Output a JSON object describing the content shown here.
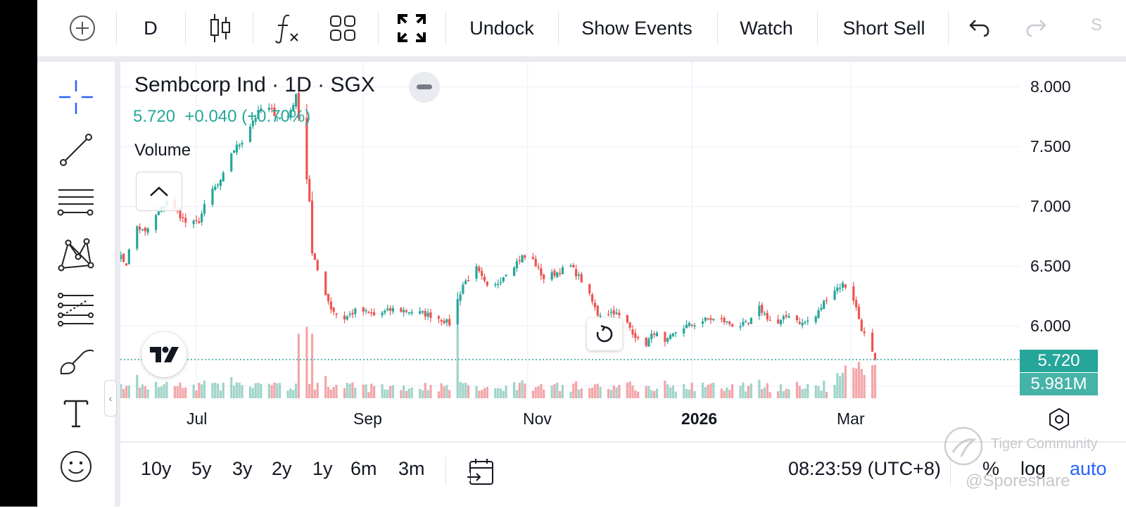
{
  "toolbar": {
    "interval": "D",
    "undock": "Undock",
    "show_events": "Show Events",
    "watch": "Watch",
    "short_sell": "Short Sell",
    "cut_text": "S"
  },
  "legend": {
    "title": "Sembcorp Ind · 1D · SGX",
    "last": "5.720",
    "change": "+0.040",
    "change_pct": "(+0.70%)",
    "volume_label": "Volume"
  },
  "badges": {
    "price": "5.720",
    "volume": "5.981M"
  },
  "bottom": {
    "ranges": [
      "10y",
      "5y",
      "3y",
      "2y",
      "1y",
      "6m",
      "3m"
    ],
    "clock": "08:23:59 (UTC+8)",
    "percent": "%",
    "log": "log",
    "auto": "auto"
  },
  "watermark": {
    "community": "Tiger Community",
    "author": "@Sporeshare"
  },
  "colors": {
    "up": "#26a69a",
    "down": "#ef5350",
    "up_volume": "#9fd4c9",
    "down_volume": "#f3a5a8",
    "accent_blue": "#2962ff"
  },
  "chart_data": {
    "type": "candlestick",
    "title": "Sembcorp Ind · 1D · SGX",
    "y_ticks": [
      "8.000",
      "7.500",
      "7.000",
      "6.500",
      "6.000"
    ],
    "ylim": [
      5.5,
      8.05
    ],
    "x_ticks": [
      {
        "label": "Jul",
        "date": "2025-07-01"
      },
      {
        "label": "Sep",
        "date": "2025-09-01"
      },
      {
        "label": "Nov",
        "date": "2025-11-01"
      },
      {
        "label": "2026",
        "date": "2026-01-01",
        "bold": true
      },
      {
        "label": "Mar",
        "date": "2026-03-01"
      }
    ],
    "last_price": 5.72,
    "last_volume": "5.981M",
    "grid": true,
    "close_path": [
      [
        "2025-06-02",
        6.6
      ],
      [
        "2025-06-05",
        6.52
      ],
      [
        "2025-06-08",
        6.85
      ],
      [
        "2025-06-12",
        6.78
      ],
      [
        "2025-06-16",
        6.92
      ],
      [
        "2025-06-20",
        7.05
      ],
      [
        "2025-06-24",
        6.95
      ],
      [
        "2025-06-28",
        6.84
      ],
      [
        "2025-07-02",
        6.88
      ],
      [
        "2025-07-06",
        7.12
      ],
      [
        "2025-07-10",
        7.2
      ],
      [
        "2025-07-14",
        7.45
      ],
      [
        "2025-07-18",
        7.55
      ],
      [
        "2025-07-22",
        7.72
      ],
      [
        "2025-07-26",
        7.85
      ],
      [
        "2025-07-30",
        7.78
      ],
      [
        "2025-08-03",
        7.7
      ],
      [
        "2025-08-07",
        7.92
      ],
      [
        "2025-08-09",
        7.6
      ],
      [
        "2025-08-12",
        7.05
      ],
      [
        "2025-08-13",
        6.6
      ],
      [
        "2025-08-16",
        6.4
      ],
      [
        "2025-08-20",
        6.15
      ],
      [
        "2025-08-24",
        6.05
      ],
      [
        "2025-08-30",
        6.14
      ],
      [
        "2025-09-05",
        6.09
      ],
      [
        "2025-09-12",
        6.14
      ],
      [
        "2025-09-20",
        6.12
      ],
      [
        "2025-09-28",
        6.08
      ],
      [
        "2025-10-03",
        6.02
      ],
      [
        "2025-10-08",
        6.35
      ],
      [
        "2025-10-13",
        6.48
      ],
      [
        "2025-10-18",
        6.28
      ],
      [
        "2025-10-24",
        6.45
      ],
      [
        "2025-10-30",
        6.58
      ],
      [
        "2025-11-03",
        6.55
      ],
      [
        "2025-11-07",
        6.4
      ],
      [
        "2025-11-12",
        6.45
      ],
      [
        "2025-11-17",
        6.5
      ],
      [
        "2025-11-22",
        6.35
      ],
      [
        "2025-11-27",
        6.1
      ],
      [
        "2025-12-03",
        6.12
      ],
      [
        "2025-12-08",
        6.02
      ],
      [
        "2025-12-14",
        5.82
      ],
      [
        "2025-12-18",
        5.95
      ],
      [
        "2025-12-22",
        5.85
      ],
      [
        "2025-12-27",
        5.98
      ],
      [
        "2026-01-02",
        6.02
      ],
      [
        "2026-01-07",
        6.06
      ],
      [
        "2026-01-12",
        6.05
      ],
      [
        "2026-01-17",
        6.0
      ],
      [
        "2026-01-22",
        6.02
      ],
      [
        "2026-01-26",
        6.15
      ],
      [
        "2026-02-01",
        6.0
      ],
      [
        "2026-02-06",
        6.1
      ],
      [
        "2026-02-11",
        6.02
      ],
      [
        "2026-02-16",
        6.08
      ],
      [
        "2026-02-21",
        6.28
      ],
      [
        "2026-02-26",
        6.35
      ],
      [
        "2026-03-01",
        6.3
      ],
      [
        "2026-03-03",
        6.15
      ],
      [
        "2026-03-05",
        5.98
      ],
      [
        "2026-03-08",
        5.82
      ],
      [
        "2026-03-10",
        5.72
      ]
    ]
  }
}
